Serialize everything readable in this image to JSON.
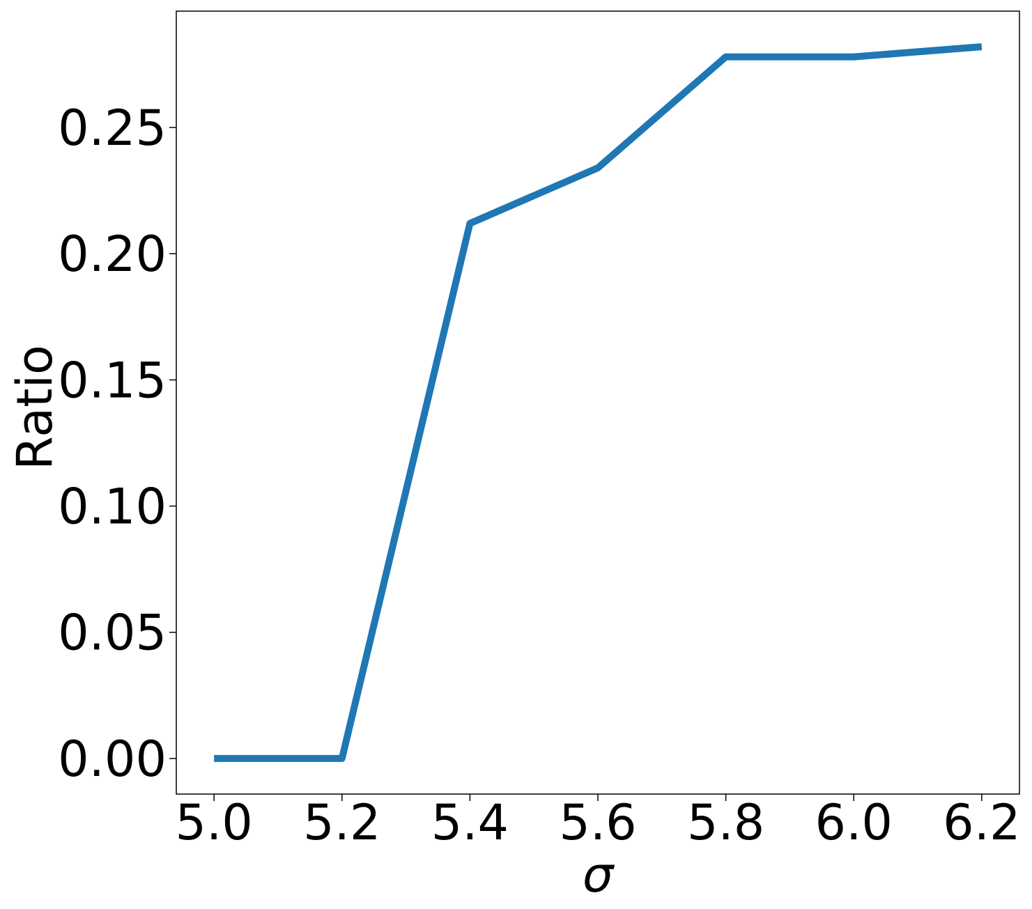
{
  "chart_data": {
    "type": "line",
    "xlabel": "σ",
    "ylabel": "Ratio",
    "x": [
      5.0,
      5.2,
      5.4,
      5.6,
      5.8,
      6.0,
      6.2
    ],
    "values": [
      0,
      0,
      0.212,
      0.234,
      0.278,
      0.278,
      0.282
    ],
    "color": "#1f77b4",
    "xlim": [
      4.941,
      6.259
    ],
    "ylim": [
      -0.0141,
      0.2961
    ],
    "xticks": [
      {
        "value": 5.0,
        "label": "5.0"
      },
      {
        "value": 5.2,
        "label": "5.2"
      },
      {
        "value": 5.4,
        "label": "5.4"
      },
      {
        "value": 5.6,
        "label": "5.6"
      },
      {
        "value": 5.8,
        "label": "5.8"
      },
      {
        "value": 6.0,
        "label": "6.0"
      },
      {
        "value": 6.2,
        "label": "6.2"
      }
    ],
    "yticks": [
      {
        "value": 0,
        "label": "0.00"
      },
      {
        "value": 0.05,
        "label": "0.05"
      },
      {
        "value": 0.1,
        "label": "0.10"
      },
      {
        "value": 0.15,
        "label": "0.15"
      },
      {
        "value": 0.2,
        "label": "0.20"
      },
      {
        "value": 0.25,
        "label": "0.25"
      }
    ],
    "grid": false
  }
}
